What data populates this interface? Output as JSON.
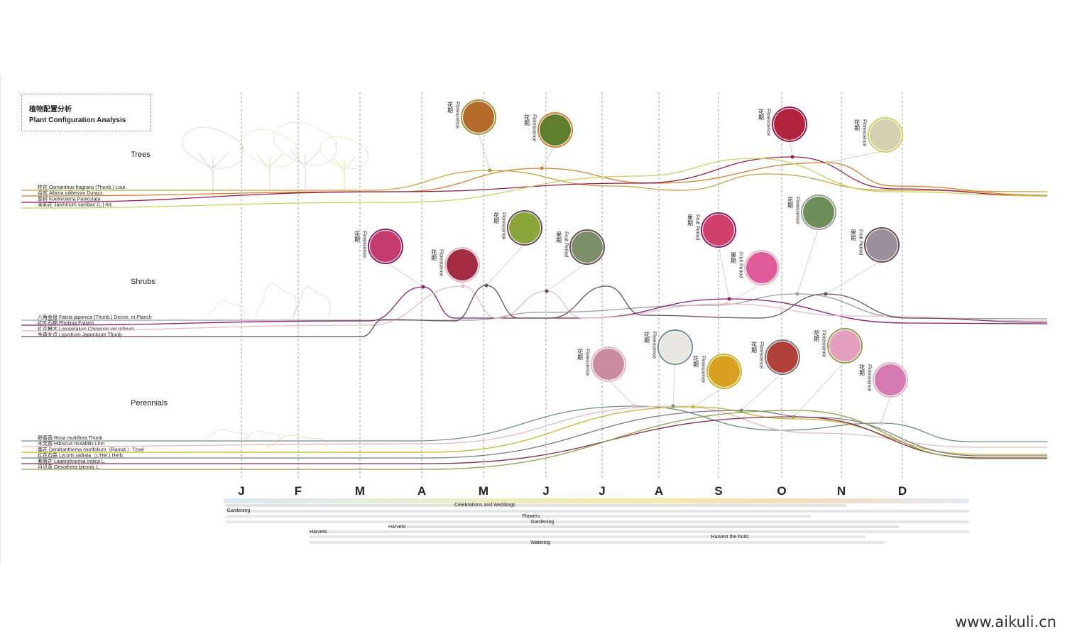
{
  "title": {
    "cn": "植物配置分析",
    "en": "Plant Configuration Analysis"
  },
  "watermark": "www.aikuli.cn",
  "months": [
    "J",
    "F",
    "M",
    "A",
    "M",
    "J",
    "J",
    "A",
    "S",
    "O",
    "N",
    "D"
  ],
  "colors": {
    "trees": [
      "#c9a23a",
      "#d77f2d",
      "#9a1b4b",
      "#c8d25a"
    ],
    "shrubs": [
      "#9e9e9e",
      "#8e1a6a",
      "#e8b9c2",
      "#6a4a55"
    ],
    "perennials": [
      "#6f8f8f",
      "#e4b7c6",
      "#c9b52b",
      "#7a7a7a",
      "#8b2a50",
      "#8f9f4f"
    ]
  },
  "groups": [
    {
      "key": "trees",
      "label": "Trees",
      "plants": [
        "桂花 Osmanthus fragrans (Thunb.) Lour.",
        "合欢 Albizia julibrissin Durazz.",
        "栾树 Koelreuteria Paniculata",
        "茉莉花 Jasminum sambac (L.) Ait."
      ],
      "annotations": [
        {
          "cn": "花期",
          "en": "Florescence",
          "icon": "yellow-flower-photo-icon",
          "color": "#9a9a3a"
        },
        {
          "cn": "花期",
          "en": "Florescence",
          "icon": "orange-tree-flower-photo-icon",
          "color": "#d77f2d"
        },
        {
          "cn": "花期",
          "en": "Florescence",
          "icon": "red-panicle-photo-icon",
          "color": "#9a1b4b"
        },
        {
          "cn": "花期",
          "en": "Florescence",
          "icon": "white-jasmine-photo-icon",
          "color": "#c8d25a"
        }
      ]
    },
    {
      "key": "shrubs",
      "label": "Shrubs",
      "plants": [
        "八角金盘 Fatsia japonica (Thunb.) Decne. et Planch",
        "红叶石楠 Photinia Fraseri",
        "红花檵木 Loropetalum Chinense var.rubrum",
        "金森女贞 Ligustrum Japonicum Thunb"
      ],
      "annotations": [
        {
          "cn": "花期",
          "en": "Florescence",
          "icon": "red-leaf-photo-icon",
          "color": "#8e1a6a"
        },
        {
          "cn": "花期",
          "en": "Florescence",
          "icon": "pink-loropetalum-photo-icon",
          "color": "#e8b9c2"
        },
        {
          "cn": "花期",
          "en": "Florescence",
          "icon": "green-privet-photo-icon",
          "color": "#6a4a55"
        },
        {
          "cn": "果期",
          "en": "Fruit Period",
          "icon": "white-berries-photo-icon",
          "color": "#6a4a55"
        },
        {
          "cn": "果期",
          "en": "Fruit Period",
          "icon": "red-field-photo-icon",
          "color": "#8e1a6a"
        },
        {
          "cn": "果期",
          "en": "Fruit Period",
          "icon": "pink-spike-photo-icon",
          "color": "#e8b9c2"
        },
        {
          "cn": "花期",
          "en": "Florescence",
          "icon": "fatsia-leaf-photo-icon",
          "color": "#9e9e9e"
        },
        {
          "cn": "果期",
          "en": "Fruit Period",
          "icon": "fatsia-fruit-photo-icon",
          "color": "#6a4a55"
        }
      ]
    },
    {
      "key": "perennials",
      "label": "Perennials",
      "plants": [
        "野蔷薇 Rosa multiflora Thunb",
        "木芙蓉 Hibiscus mutabilis Linn",
        "菊花 Dendranthema morifolium（Ramat.）Tzvel",
        "红花石蒜 Lycoris radiata（L'Her.) Herb.",
        "紫薇花 Lagerstroemia indica L.",
        "月见草 Oenothera biennis L."
      ],
      "annotations": [
        {
          "cn": "花期",
          "en": "Florescence",
          "icon": "pink-rose-photo-icon",
          "color": "#e4b7c6"
        },
        {
          "cn": "花期",
          "en": "Florescence",
          "icon": "white-hibiscus-photo-icon",
          "color": "#6f8f8f"
        },
        {
          "cn": "花期",
          "en": "Florescence",
          "icon": "yellow-chrysanthemum-photo-icon",
          "color": "#c9b52b"
        },
        {
          "cn": "花期",
          "en": "Florescence",
          "icon": "red-lycoris-photo-icon",
          "color": "#7a7a7a"
        },
        {
          "cn": "花期",
          "en": "Florescence",
          "icon": "pink-primrose-photo-icon",
          "color": "#8f9f4f"
        },
        {
          "cn": "花期",
          "en": "Florescence",
          "icon": "crape-myrtle-photo-icon",
          "color": "#e4b7c6"
        }
      ]
    }
  ],
  "activities": [
    "Celebrations and Weddings",
    "Gardening",
    "Flowers",
    "Gardening",
    "Harvest",
    "Harvest",
    "Harvest the fruits",
    "Watering"
  ]
}
